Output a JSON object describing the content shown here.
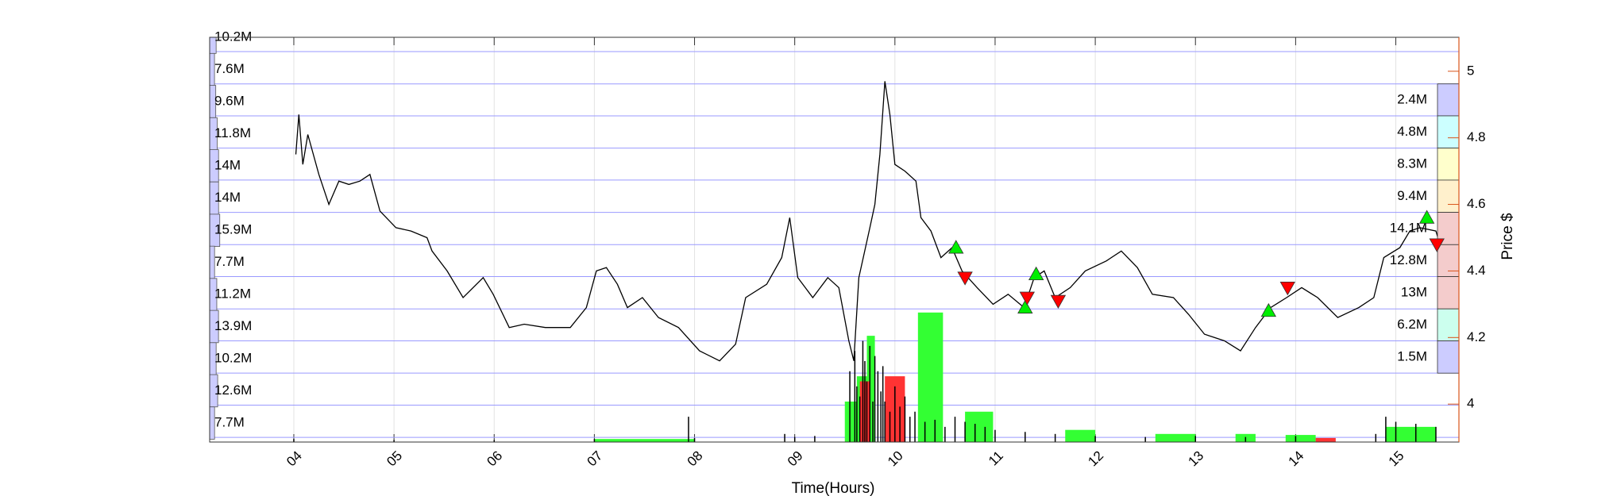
{
  "chart_data": {
    "type": "price-volume",
    "xlabel": "Time(Hours)",
    "ylabel": "Price $",
    "yaxis_side": "right",
    "axis_color": "#d95319",
    "grid": true,
    "xlim": [
      3.16,
      15.63
    ],
    "xticks": [
      {
        "value": 4,
        "label": "04"
      },
      {
        "value": 5,
        "label": "05"
      },
      {
        "value": 6,
        "label": "06"
      },
      {
        "value": 7,
        "label": "07"
      },
      {
        "value": 8,
        "label": "08"
      },
      {
        "value": 9,
        "label": "09"
      },
      {
        "value": 10,
        "label": "10"
      },
      {
        "value": 11,
        "label": "11"
      },
      {
        "value": 12,
        "label": "12"
      },
      {
        "value": 13,
        "label": "13"
      },
      {
        "value": 14,
        "label": "14"
      },
      {
        "value": 15,
        "label": "15"
      }
    ],
    "ylim": [
      3.886,
      5.102
    ],
    "yticks": [
      4,
      4.2,
      4.4,
      4.6,
      4.8,
      5
    ],
    "price": {
      "color": "#000000",
      "x": [
        4.02,
        4.05,
        4.09,
        4.14,
        4.25,
        4.35,
        4.45,
        4.55,
        4.66,
        4.76,
        4.86,
        5.02,
        5.17,
        5.33,
        5.38,
        5.53,
        5.69,
        5.89,
        5.99,
        6.15,
        6.3,
        6.51,
        6.76,
        6.92,
        7.02,
        7.12,
        7.23,
        7.33,
        7.48,
        7.64,
        7.84,
        8.05,
        8.25,
        8.41,
        8.51,
        8.72,
        8.87,
        8.95,
        9.03,
        9.18,
        9.33,
        9.44,
        9.54,
        9.59,
        9.64,
        9.75,
        9.8,
        9.85,
        9.9,
        9.95,
        10.0,
        10.1,
        10.21,
        10.26,
        10.36,
        10.46,
        10.57,
        10.67,
        10.82,
        10.98,
        11.13,
        11.29,
        11.39,
        11.49,
        11.6,
        11.75,
        11.9,
        12.11,
        12.26,
        12.42,
        12.57,
        12.78,
        12.93,
        13.09,
        13.29,
        13.45,
        13.6,
        13.75,
        13.91,
        14.06,
        14.22,
        14.42,
        14.63,
        14.78,
        14.88,
        15.04,
        15.14,
        15.24,
        15.4,
        15.45
      ],
      "values": [
        4.75,
        4.87,
        4.72,
        4.81,
        4.69,
        4.6,
        4.67,
        4.66,
        4.67,
        4.69,
        4.58,
        4.53,
        4.52,
        4.5,
        4.46,
        4.4,
        4.32,
        4.38,
        4.33,
        4.23,
        4.24,
        4.23,
        4.23,
        4.29,
        4.4,
        4.41,
        4.36,
        4.29,
        4.32,
        4.26,
        4.23,
        4.16,
        4.13,
        4.18,
        4.32,
        4.36,
        4.44,
        4.56,
        4.38,
        4.32,
        4.38,
        4.35,
        4.19,
        4.13,
        4.38,
        4.53,
        4.6,
        4.75,
        4.97,
        4.87,
        4.72,
        4.7,
        4.67,
        4.56,
        4.52,
        4.44,
        4.47,
        4.4,
        4.35,
        4.3,
        4.33,
        4.29,
        4.38,
        4.4,
        4.32,
        4.35,
        4.4,
        4.43,
        4.46,
        4.41,
        4.33,
        4.32,
        4.27,
        4.21,
        4.19,
        4.16,
        4.23,
        4.29,
        4.32,
        4.35,
        4.32,
        4.26,
        4.29,
        4.32,
        4.44,
        4.47,
        4.52,
        4.53,
        4.52,
        4.47
      ]
    },
    "level_lines": {
      "color": "#9a9aff",
      "values": [
        5.059,
        4.962,
        4.866,
        4.769,
        4.673,
        4.576,
        4.479,
        4.383,
        4.286,
        4.19,
        4.093,
        3.997,
        3.9
      ]
    },
    "left_profile": {
      "color": "#ccccff",
      "levels": [
        5.102,
        5.005,
        4.909,
        4.812,
        4.716,
        4.619,
        4.522,
        4.426,
        4.329,
        4.233,
        4.136,
        4.04,
        3.943
      ],
      "values": [
        10.2,
        7.6,
        9.6,
        11.8,
        14,
        14,
        15.9,
        7.7,
        11.2,
        13.9,
        10.2,
        12.6,
        7.7
      ],
      "value_labels": [
        "10.2M",
        "7.6M",
        "9.6M",
        "11.8M",
        "14M",
        "14M",
        "15.9M",
        "7.7M",
        "11.2M",
        "13.9M",
        "10.2M",
        "12.6M",
        "7.7M"
      ]
    },
    "right_profile": {
      "edges": [
        4.962,
        4.866,
        4.769,
        4.673,
        4.576,
        4.479,
        4.383,
        4.286,
        4.19,
        4.093
      ],
      "values": [
        2.4,
        4.8,
        8.3,
        9.4,
        14.1,
        12.8,
        13,
        6.2,
        1.5
      ],
      "value_labels": [
        "2.4M",
        "4.8M",
        "8.3M",
        "9.4M",
        "14.1M",
        "12.8M",
        "13M",
        "6.2M",
        "1.5M"
      ],
      "colors": [
        "#ccccff",
        "#ccffff",
        "#ffffcc",
        "#fff0cc",
        "#f4cccc",
        "#f4cccc",
        "#f4cccc",
        "#ccffee",
        "#ccccff"
      ]
    },
    "volume": {
      "ylim": [
        0,
        400
      ],
      "blocks": [
        {
          "x0": 7.0,
          "x1": 8.0,
          "value": 3,
          "color": "#33ff33"
        },
        {
          "x0": 9.5,
          "x1": 9.62,
          "value": 40,
          "color": "#33ff33"
        },
        {
          "x0": 9.62,
          "x1": 9.72,
          "value": 65,
          "color": "#33ff33"
        },
        {
          "x0": 9.72,
          "x1": 9.8,
          "value": 105,
          "color": "#33ff33"
        },
        {
          "x0": 9.65,
          "x1": 9.75,
          "value": 60,
          "color": "#ff3333"
        },
        {
          "x0": 9.9,
          "x1": 10.1,
          "value": 65,
          "color": "#ff3333"
        },
        {
          "x0": 10.23,
          "x1": 10.48,
          "value": 128,
          "color": "#33ff33"
        },
        {
          "x0": 10.7,
          "x1": 10.98,
          "value": 30,
          "color": "#33ff33"
        },
        {
          "x0": 11.7,
          "x1": 12.0,
          "value": 12,
          "color": "#33ff33"
        },
        {
          "x0": 12.6,
          "x1": 13.0,
          "value": 8,
          "color": "#33ff33"
        },
        {
          "x0": 13.4,
          "x1": 13.6,
          "value": 8,
          "color": "#33ff33"
        },
        {
          "x0": 13.9,
          "x1": 14.2,
          "value": 7,
          "color": "#33ff33"
        },
        {
          "x0": 14.2,
          "x1": 14.4,
          "value": 4,
          "color": "#ff3333"
        },
        {
          "x0": 14.9,
          "x1": 15.4,
          "value": 15,
          "color": "#33ff33"
        }
      ],
      "spikes": {
        "color": "#000000",
        "x": [
          4.0,
          5.0,
          6.0,
          7.0,
          7.94,
          8.0,
          8.9,
          9.0,
          9.2,
          9.55,
          9.6,
          9.62,
          9.65,
          9.68,
          9.7,
          9.72,
          9.75,
          9.78,
          9.8,
          9.83,
          9.86,
          9.88,
          9.9,
          9.95,
          10.0,
          10.05,
          10.1,
          10.15,
          10.2,
          10.3,
          10.4,
          10.5,
          10.6,
          10.7,
          10.8,
          10.9,
          11.0,
          11.3,
          11.6,
          12.0,
          12.5,
          13.0,
          13.5,
          14.0,
          14.8,
          14.9,
          15.0,
          15.2,
          15.4
        ],
        "values": [
          3,
          2,
          2,
          3,
          25,
          4,
          8,
          5,
          6,
          70,
          90,
          55,
          45,
          100,
          80,
          60,
          95,
          40,
          85,
          70,
          50,
          75,
          40,
          30,
          55,
          35,
          45,
          25,
          30,
          20,
          22,
          15,
          25,
          20,
          18,
          15,
          12,
          10,
          8,
          6,
          5,
          6,
          5,
          6,
          8,
          25,
          20,
          18,
          15
        ]
      }
    },
    "signals": [
      {
        "kind": "buy",
        "color": "#00ee00",
        "x": [
          10.61,
          11.3,
          11.41,
          13.73,
          15.31
        ],
        "values": [
          4.47,
          4.29,
          4.39,
          4.28,
          4.56
        ]
      },
      {
        "kind": "sell",
        "color": "#ff0000",
        "x": [
          10.7,
          11.32,
          11.63,
          13.92,
          15.41
        ],
        "values": [
          4.38,
          4.32,
          4.31,
          4.35,
          4.48
        ]
      }
    ]
  }
}
